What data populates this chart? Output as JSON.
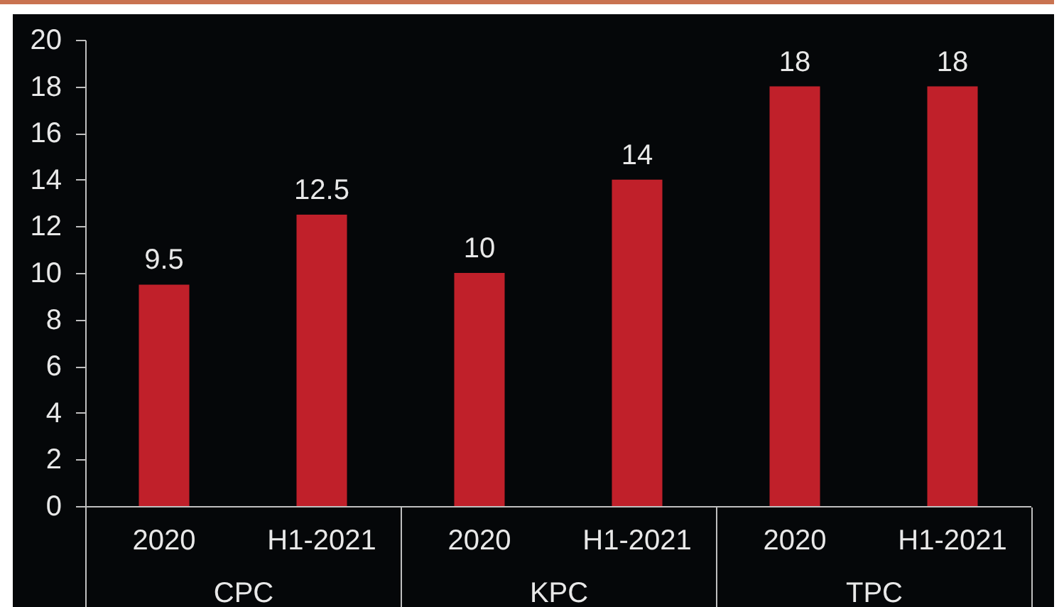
{
  "chart_data": [
    {
      "type": "bar",
      "categories": [
        "2020",
        "H1-2021"
      ],
      "values": [
        9.5,
        12.5
      ],
      "color": "#c0202a",
      "xlabel": "CPC",
      "ylim": [
        0,
        20
      ],
      "yticks": [
        0,
        2,
        4,
        6,
        8,
        10,
        12,
        14,
        16,
        18,
        20
      ],
      "data_labels": true
    },
    {
      "type": "bar",
      "categories": [
        "2020",
        "H1-2021"
      ],
      "values": [
        10,
        14
      ],
      "color": "#c0202a",
      "xlabel": "KPC",
      "ylim": [
        0,
        20
      ],
      "tick_labels": "x",
      "data_labels": true
    },
    {
      "type": "bar",
      "categories": [
        "2020",
        "H1-2021"
      ],
      "values": [
        18,
        18
      ],
      "color": "#c0202a",
      "xlabel": "TPC",
      "ylim": [
        0,
        20
      ],
      "tick_labels": "x",
      "data_labels": true
    }
  ]
}
